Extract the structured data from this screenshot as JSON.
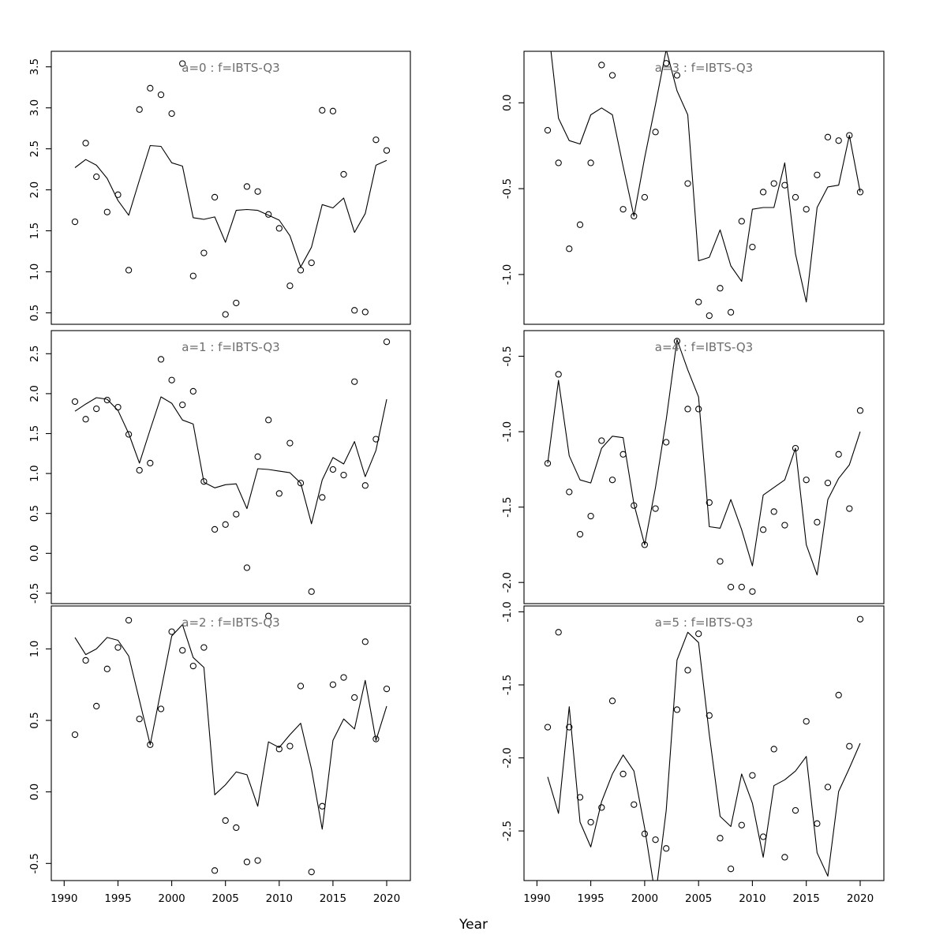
{
  "figure": {
    "xlabel": "Year",
    "background": "#ffffff",
    "title_color": "#6e6e6e",
    "axis_color": "#000000",
    "x_ticks": [
      1990,
      1995,
      2000,
      2005,
      2010,
      2015,
      2020
    ],
    "years": [
      1991,
      1992,
      1993,
      1994,
      1995,
      1996,
      1997,
      1998,
      1999,
      2000,
      2001,
      2002,
      2003,
      2004,
      2005,
      2006,
      2007,
      2008,
      2009,
      2010,
      2011,
      2012,
      2013,
      2014,
      2015,
      2016,
      2017,
      2018,
      2019,
      2020
    ]
  },
  "chart_data": [
    {
      "type": "line",
      "subtype": "scatter-with-fitted-line",
      "a": 0,
      "f": "IBTS-Q3",
      "title": "a=0 : f=IBTS-Q3",
      "col": 0,
      "row": 0,
      "xlim": [
        1988.8,
        2022.2
      ],
      "ylim": [
        0.36,
        3.69
      ],
      "yticks": [
        0.5,
        1.0,
        1.5,
        2.0,
        2.5,
        3.0,
        3.5
      ],
      "points": [
        1.61,
        2.57,
        2.16,
        1.73,
        1.94,
        1.02,
        2.98,
        3.24,
        3.16,
        2.93,
        3.54,
        0.95,
        1.23,
        1.91,
        0.48,
        0.62,
        2.04,
        1.98,
        1.7,
        1.53,
        0.83,
        1.02,
        1.11,
        2.97,
        2.96,
        2.19,
        0.53,
        0.51,
        2.61,
        2.48
      ],
      "line": [
        2.27,
        2.37,
        2.3,
        2.14,
        1.87,
        1.69,
        2.12,
        2.54,
        2.53,
        2.33,
        2.29,
        1.66,
        1.64,
        1.67,
        1.36,
        1.75,
        1.76,
        1.75,
        1.69,
        1.63,
        1.44,
        1.06,
        1.3,
        1.82,
        1.78,
        1.9,
        1.48,
        1.71,
        2.3,
        2.36
      ]
    },
    {
      "type": "line",
      "subtype": "scatter-with-fitted-line",
      "a": 1,
      "f": "IBTS-Q3",
      "title": "a=1 : f=IBTS-Q3",
      "col": 0,
      "row": 1,
      "xlim": [
        1988.8,
        2022.2
      ],
      "ylim": [
        -0.63,
        2.79
      ],
      "yticks": [
        -0.5,
        0.0,
        0.5,
        1.0,
        1.5,
        2.0,
        2.5
      ],
      "points": [
        1.9,
        1.68,
        1.81,
        1.92,
        1.83,
        1.49,
        1.04,
        1.13,
        2.43,
        2.17,
        1.86,
        2.03,
        0.9,
        0.3,
        0.36,
        0.49,
        -0.18,
        1.21,
        1.67,
        0.75,
        1.38,
        0.88,
        -0.48,
        0.7,
        1.05,
        0.98,
        2.15,
        0.85,
        1.43,
        2.65
      ],
      "line": [
        1.78,
        1.87,
        1.95,
        1.93,
        1.79,
        1.5,
        1.13,
        1.55,
        1.96,
        1.88,
        1.67,
        1.62,
        0.89,
        0.82,
        0.86,
        0.87,
        0.56,
        1.06,
        1.05,
        1.03,
        1.01,
        0.88,
        0.37,
        0.92,
        1.2,
        1.12,
        1.4,
        0.96,
        1.29,
        1.93
      ]
    },
    {
      "type": "line",
      "subtype": "scatter-with-fitted-line",
      "a": 2,
      "f": "IBTS-Q3",
      "title": "a=2 : f=IBTS-Q3",
      "col": 0,
      "row": 2,
      "xlim": [
        1988.8,
        2022.2
      ],
      "ylim": [
        -0.62,
        1.3
      ],
      "yticks": [
        -0.5,
        0.0,
        0.5,
        1.0
      ],
      "points": [
        0.4,
        0.92,
        0.6,
        0.86,
        1.01,
        1.2,
        0.51,
        0.33,
        0.58,
        1.12,
        0.99,
        0.88,
        1.01,
        -0.55,
        -0.2,
        -0.25,
        -0.49,
        -0.48,
        1.23,
        0.3,
        0.32,
        0.74,
        -0.56,
        -0.1,
        0.75,
        0.8,
        0.66,
        1.05,
        0.37,
        0.72
      ],
      "line": [
        1.08,
        0.96,
        1.0,
        1.08,
        1.06,
        0.95,
        0.64,
        0.33,
        0.71,
        1.09,
        1.17,
        0.94,
        0.87,
        -0.02,
        0.05,
        0.14,
        0.12,
        -0.1,
        0.35,
        0.31,
        0.4,
        0.48,
        0.16,
        -0.26,
        0.36,
        0.51,
        0.44,
        0.78,
        0.36,
        0.6
      ]
    },
    {
      "type": "line",
      "subtype": "scatter-with-fitted-line",
      "a": 3,
      "f": "IBTS-Q3",
      "title": "a=3 : f=IBTS-Q3",
      "col": 1,
      "row": 0,
      "xlim": [
        1988.8,
        2022.2
      ],
      "ylim": [
        -1.29,
        0.3
      ],
      "yticks": [
        -1.0,
        -0.5,
        0.0
      ],
      "points": [
        -0.16,
        -0.35,
        -0.85,
        -0.71,
        -0.35,
        0.22,
        0.16,
        -0.62,
        -0.66,
        -0.55,
        -0.17,
        0.23,
        0.16,
        -0.47,
        -1.16,
        -1.24,
        -1.08,
        -1.22,
        -0.69,
        -0.84,
        -0.52,
        -0.47,
        -0.48,
        -0.55,
        -0.62,
        -0.42,
        -0.2,
        -0.22,
        -0.19,
        -0.52
      ],
      "line": [
        0.47,
        -0.09,
        -0.22,
        -0.24,
        -0.07,
        -0.03,
        -0.07,
        -0.37,
        -0.66,
        -0.32,
        -0.01,
        0.31,
        0.07,
        -0.07,
        -0.92,
        -0.9,
        -0.74,
        -0.95,
        -1.04,
        -0.62,
        -0.61,
        -0.61,
        -0.35,
        -0.88,
        -1.16,
        -0.61,
        -0.49,
        -0.48,
        -0.19,
        -0.52
      ]
    },
    {
      "type": "line",
      "subtype": "scatter-with-fitted-line",
      "a": 4,
      "f": "IBTS-Q3",
      "title": "a=4 : f=IBTS-Q3",
      "col": 1,
      "row": 1,
      "xlim": [
        1988.8,
        2022.2
      ],
      "ylim": [
        -2.14,
        -0.33
      ],
      "yticks": [
        -2.0,
        -1.5,
        -1.0,
        -0.5
      ],
      "points": [
        -1.21,
        -0.62,
        -1.4,
        -1.68,
        -1.56,
        -1.06,
        -1.32,
        -1.15,
        -1.49,
        -1.75,
        -1.51,
        -1.07,
        -0.4,
        -0.85,
        -0.85,
        -1.47,
        -1.86,
        -2.03,
        -2.03,
        -2.06,
        -1.65,
        -1.53,
        -1.62,
        -1.11,
        -1.32,
        -1.6,
        -1.34,
        -1.15,
        -1.51,
        -0.86
      ],
      "line": [
        -1.21,
        -0.66,
        -1.16,
        -1.32,
        -1.34,
        -1.11,
        -1.03,
        -1.04,
        -1.48,
        -1.75,
        -1.37,
        -0.92,
        -0.39,
        -0.59,
        -0.77,
        -1.63,
        -1.64,
        -1.45,
        -1.65,
        -1.89,
        -1.42,
        -1.37,
        -1.32,
        -1.11,
        -1.75,
        -1.95,
        -1.45,
        -1.31,
        -1.22,
        -1.0
      ]
    },
    {
      "type": "line",
      "subtype": "scatter-with-fitted-line",
      "a": 5,
      "f": "IBTS-Q3",
      "title": "a=5 : f=IBTS-Q3",
      "col": 1,
      "row": 2,
      "xlim": [
        1988.8,
        2022.2
      ],
      "ylim": [
        -2.84,
        -0.96
      ],
      "yticks": [
        -2.5,
        -2.0,
        -1.5,
        -1.0
      ],
      "points": [
        -1.79,
        -1.14,
        -1.79,
        -2.27,
        -2.44,
        -2.34,
        -1.61,
        -2.11,
        -2.32,
        -2.52,
        -2.56,
        -2.62,
        -1.67,
        -1.4,
        -1.15,
        -1.71,
        -2.55,
        -2.76,
        -2.46,
        -2.12,
        -2.54,
        -1.94,
        -2.68,
        -2.36,
        -1.75,
        -2.45,
        -2.2,
        -1.57,
        -1.92,
        -1.05
      ],
      "line": [
        -2.13,
        -2.38,
        -1.65,
        -2.44,
        -2.61,
        -2.3,
        -2.11,
        -1.98,
        -2.09,
        -2.48,
        -2.95,
        -2.36,
        -1.33,
        -1.14,
        -1.21,
        -1.84,
        -2.4,
        -2.47,
        -2.11,
        -2.31,
        -2.68,
        -2.19,
        -2.15,
        -2.09,
        -1.99,
        -2.65,
        -2.81,
        -2.23,
        -2.07,
        -1.9
      ]
    }
  ]
}
